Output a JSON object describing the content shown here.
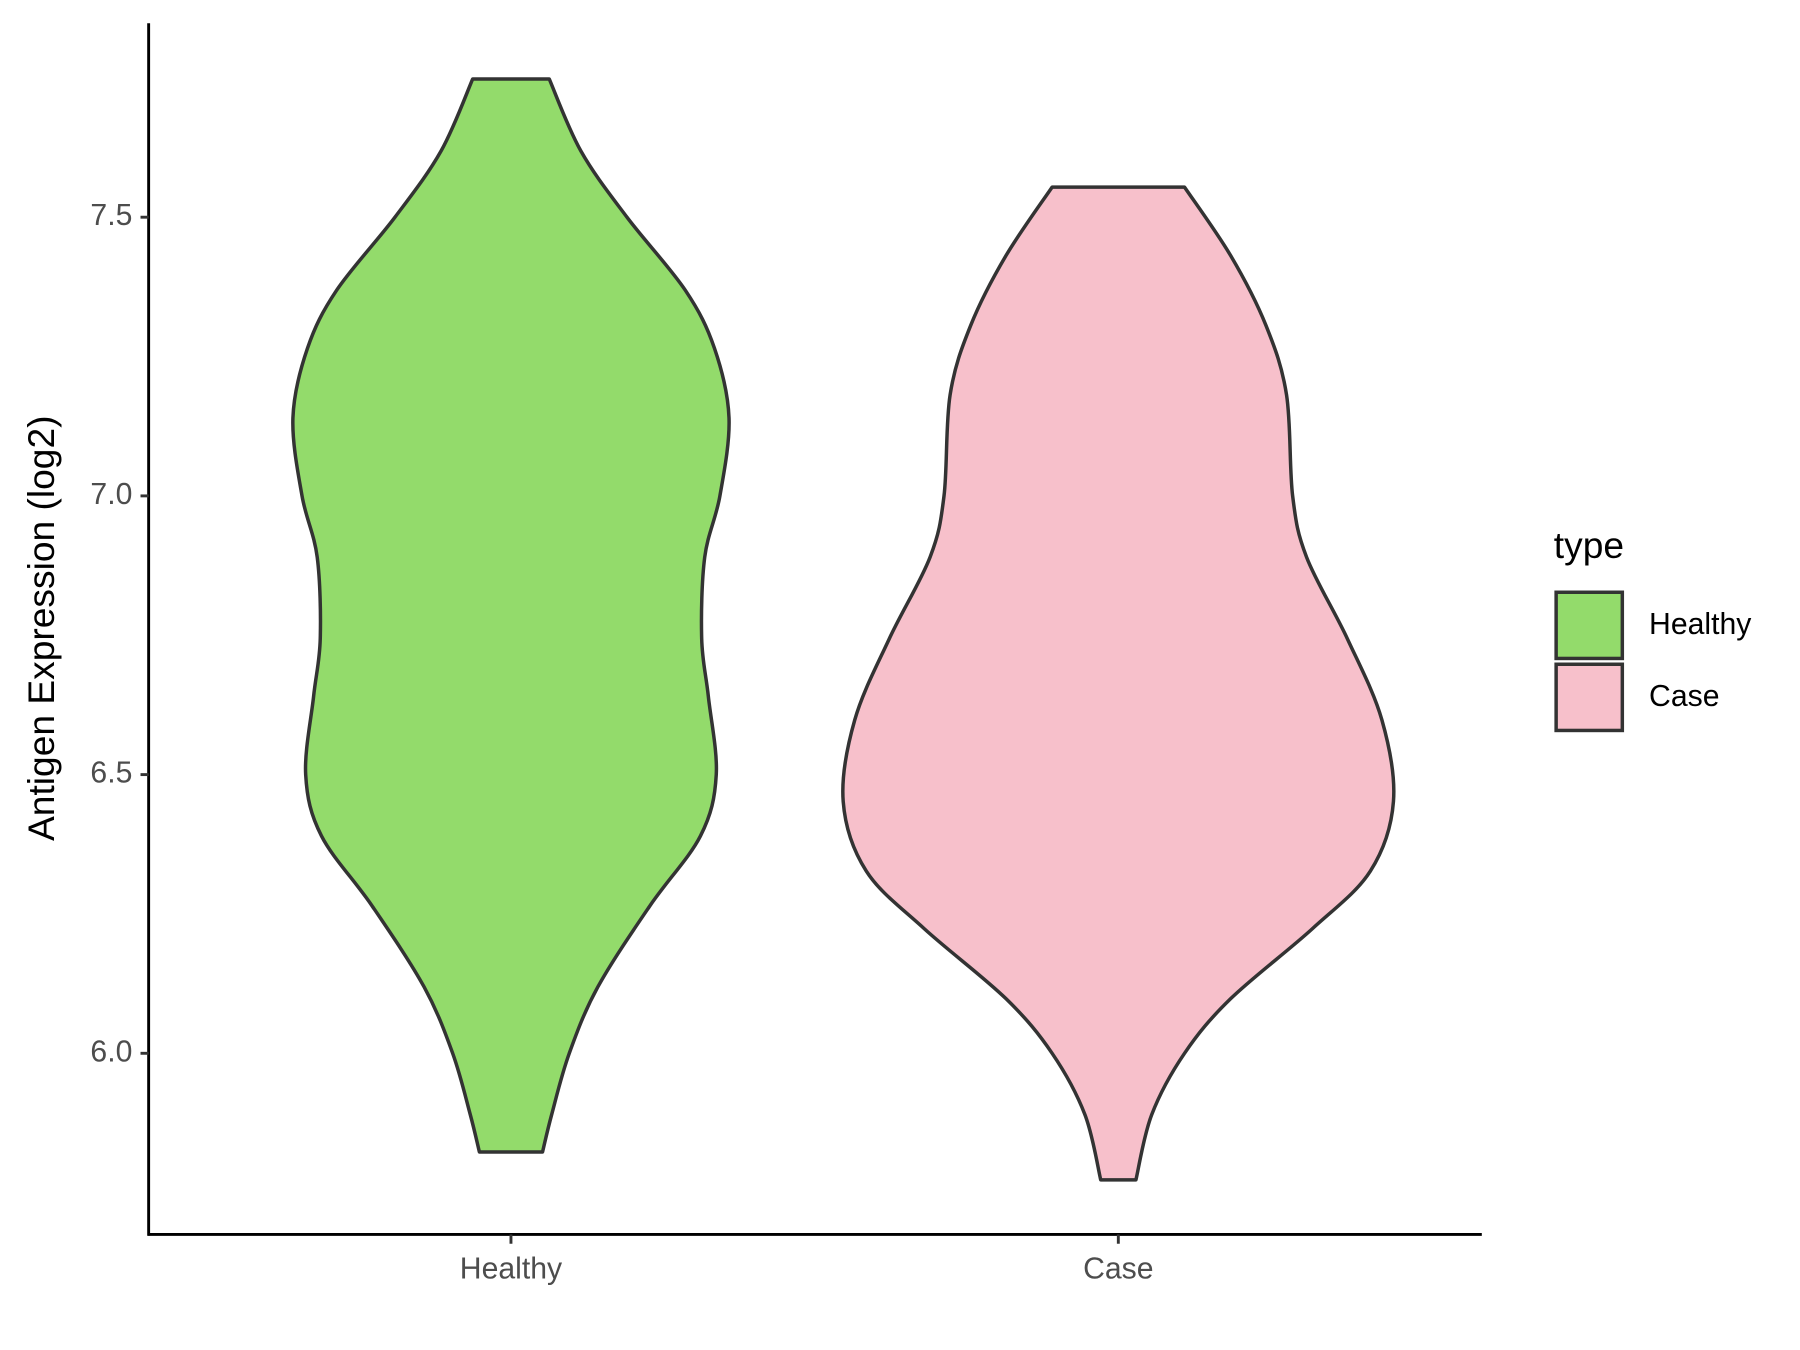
{
  "chart_data": {
    "type": "violin",
    "y_label": "Antigen Expression (log2)",
    "categories": [
      "Healthy",
      "Case"
    ],
    "legend_title": "type",
    "ylim": [
      5.675,
      7.848
    ],
    "yticks": [
      {
        "value": 6.0,
        "label": "6.0"
      },
      6.5,
      {
        "value": 7.0,
        "label": "7.0"
      },
      7.5
    ],
    "series": [
      {
        "name": "Healthy",
        "color": "#93db6b",
        "y": [
          7.748,
          7.619,
          7.5,
          7.369,
          7.265,
          7.14,
          7.0,
          6.89,
          6.744,
          6.64,
          6.5,
          6.39,
          6.265,
          6.119,
          6.0,
          5.89,
          5.823
        ],
        "width": [
          0.063,
          0.115,
          0.191,
          0.287,
          0.335,
          0.359,
          0.344,
          0.319,
          0.314,
          0.325,
          0.338,
          0.312,
          0.229,
          0.143,
          0.096,
          0.067,
          0.052
        ]
      },
      {
        "name": "Case",
        "color": "#f7c0cb",
        "y": [
          7.554,
          7.431,
          7.306,
          7.181,
          7.0,
          6.89,
          6.744,
          6.598,
          6.452,
          6.327,
          6.223,
          6.098,
          6.0,
          5.89,
          5.773
        ],
        "width": [
          0.109,
          0.185,
          0.243,
          0.277,
          0.287,
          0.31,
          0.377,
          0.434,
          0.453,
          0.415,
          0.319,
          0.185,
          0.109,
          0.055,
          0.029
        ]
      }
    ]
  }
}
